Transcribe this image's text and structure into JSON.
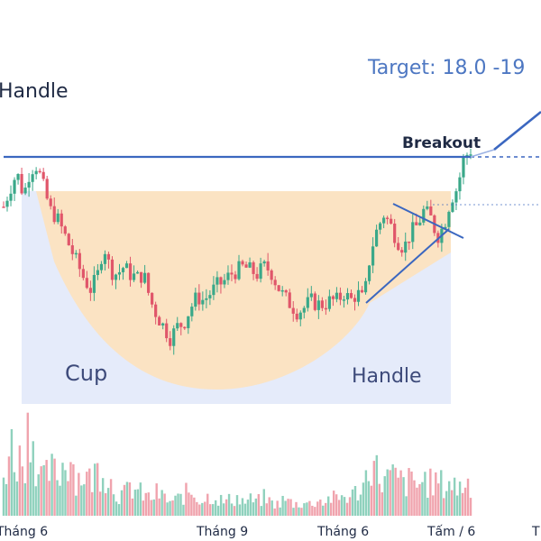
{
  "chart_data": {
    "type": "candlestick",
    "title_partial": "Handle",
    "target_text": "Target: 18.0 -19",
    "breakout_label": "Breakout",
    "pattern_labels": {
      "cup": "Cup",
      "handle": "Handle"
    },
    "x_tick_labels": [
      "Tháng 6",
      "Tháng 9",
      "Tháng 6",
      "Tấm / 6",
      "T"
    ],
    "grid": false,
    "legend": "none",
    "colors": {
      "up": "#3aa889",
      "down": "#e0566a",
      "volume_up": "#8fd1bd",
      "volume_down": "#f0a3ad",
      "resistance": "#3b67c0",
      "cup_fill": "#fde2bd",
      "handle_zone_fill": "#cfdaf6",
      "text_dark": "#1f2a44",
      "text_blue": "#4d77c2"
    },
    "price_path": [
      [
        0,
        7.1
      ],
      [
        2,
        7.6
      ],
      [
        4,
        8.0
      ],
      [
        6,
        7.4
      ],
      [
        8,
        8.1
      ],
      [
        10,
        8.2
      ],
      [
        12,
        7.6
      ],
      [
        14,
        7.0
      ],
      [
        16,
        6.8
      ],
      [
        18,
        6.4
      ],
      [
        20,
        6.0
      ],
      [
        22,
        5.6
      ],
      [
        24,
        5.2
      ],
      [
        26,
        4.9
      ],
      [
        28,
        5.2
      ],
      [
        30,
        6.1
      ],
      [
        32,
        5.4
      ],
      [
        34,
        5.3
      ],
      [
        36,
        5.5
      ],
      [
        38,
        5.3
      ],
      [
        40,
        5.2
      ],
      [
        42,
        5.3
      ],
      [
        44,
        4.6
      ],
      [
        46,
        4.2
      ],
      [
        48,
        3.9
      ],
      [
        50,
        3.6
      ],
      [
        52,
        3.9
      ],
      [
        54,
        4.0
      ],
      [
        56,
        4.4
      ],
      [
        58,
        4.7
      ],
      [
        60,
        4.6
      ],
      [
        62,
        4.8
      ],
      [
        64,
        5.0
      ],
      [
        66,
        5.1
      ],
      [
        68,
        5.3
      ],
      [
        70,
        5.4
      ],
      [
        72,
        5.5
      ],
      [
        74,
        5.4
      ],
      [
        76,
        5.3
      ],
      [
        78,
        5.5
      ],
      [
        80,
        5.4
      ],
      [
        82,
        5.0
      ],
      [
        84,
        4.7
      ],
      [
        86,
        4.5
      ],
      [
        88,
        4.3
      ],
      [
        90,
        4.4
      ],
      [
        92,
        4.6
      ],
      [
        94,
        4.5
      ],
      [
        96,
        4.5
      ],
      [
        98,
        4.6
      ],
      [
        100,
        4.6
      ],
      [
        102,
        4.8
      ],
      [
        104,
        4.6
      ],
      [
        106,
        4.8
      ],
      [
        108,
        4.6
      ],
      [
        110,
        5.9
      ],
      [
        112,
        6.5
      ],
      [
        114,
        6.9
      ],
      [
        116,
        6.6
      ],
      [
        118,
        6.2
      ],
      [
        120,
        6.0
      ],
      [
        122,
        6.4
      ],
      [
        124,
        6.6
      ],
      [
        126,
        7.0
      ],
      [
        128,
        6.8
      ],
      [
        130,
        6.3
      ],
      [
        132,
        6.6
      ],
      [
        134,
        7.3
      ],
      [
        136,
        7.6
      ],
      [
        138,
        8.4
      ],
      [
        140,
        8.6
      ]
    ],
    "volume": [
      [
        0,
        0.35
      ],
      [
        2,
        0.62
      ],
      [
        4,
        0.5
      ],
      [
        6,
        0.48
      ],
      [
        8,
        0.9
      ],
      [
        10,
        0.42
      ],
      [
        12,
        0.3
      ],
      [
        14,
        0.4
      ],
      [
        16,
        0.35
      ],
      [
        18,
        0.45
      ],
      [
        20,
        0.55
      ],
      [
        22,
        0.32
      ],
      [
        24,
        0.38
      ],
      [
        26,
        0.3
      ],
      [
        28,
        0.4
      ],
      [
        30,
        0.42
      ],
      [
        32,
        0.3
      ],
      [
        34,
        0.2
      ],
      [
        36,
        0.18
      ],
      [
        38,
        0.25
      ],
      [
        40,
        0.22
      ],
      [
        42,
        0.18
      ],
      [
        44,
        0.15
      ],
      [
        46,
        0.2
      ],
      [
        48,
        0.16
      ],
      [
        50,
        0.12
      ],
      [
        52,
        0.14
      ],
      [
        54,
        0.18
      ],
      [
        56,
        0.22
      ],
      [
        58,
        0.16
      ],
      [
        60,
        0.14
      ],
      [
        62,
        0.18
      ],
      [
        64,
        0.16
      ],
      [
        66,
        0.12
      ],
      [
        68,
        0.14
      ],
      [
        70,
        0.16
      ],
      [
        72,
        0.12
      ],
      [
        74,
        0.14
      ],
      [
        76,
        0.12
      ],
      [
        78,
        0.16
      ],
      [
        80,
        0.12
      ],
      [
        82,
        0.1
      ],
      [
        84,
        0.14
      ],
      [
        86,
        0.12
      ],
      [
        88,
        0.1
      ],
      [
        90,
        0.12
      ],
      [
        92,
        0.1
      ],
      [
        94,
        0.14
      ],
      [
        96,
        0.12
      ],
      [
        98,
        0.16
      ],
      [
        100,
        0.14
      ],
      [
        102,
        0.18
      ],
      [
        104,
        0.16
      ],
      [
        106,
        0.22
      ],
      [
        108,
        0.26
      ],
      [
        110,
        0.52
      ],
      [
        112,
        0.38
      ],
      [
        114,
        0.3
      ],
      [
        116,
        0.34
      ],
      [
        118,
        0.32
      ],
      [
        120,
        0.28
      ],
      [
        122,
        0.3
      ],
      [
        124,
        0.26
      ],
      [
        126,
        0.32
      ],
      [
        128,
        0.28
      ],
      [
        130,
        0.3
      ],
      [
        132,
        0.26
      ],
      [
        134,
        0.3
      ],
      [
        136,
        0.24
      ],
      [
        138,
        0.28
      ],
      [
        140,
        0.3
      ]
    ],
    "resistance_level": 8.3,
    "cup_rim_level": 7.6
  }
}
